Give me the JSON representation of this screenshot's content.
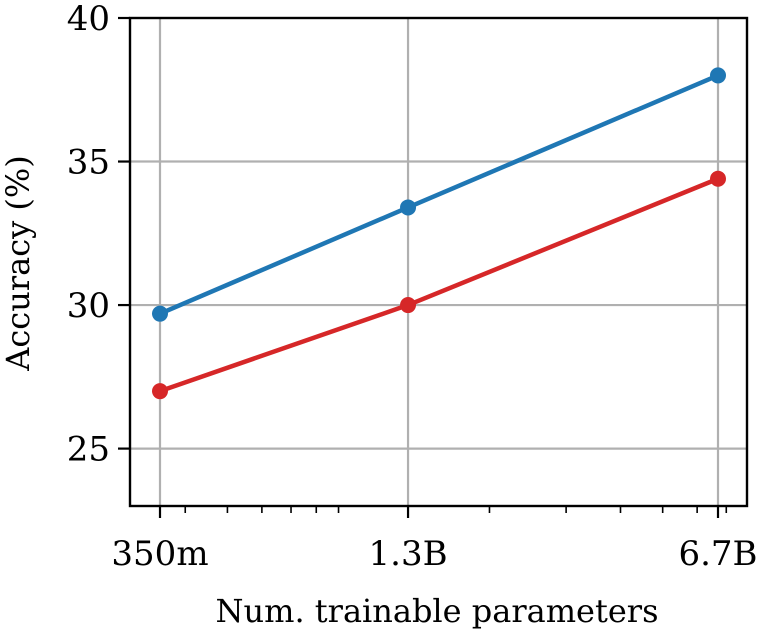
{
  "chart_data": {
    "type": "line",
    "xlabel": "Num. trainable parameters",
    "ylabel": "Accuracy (%)",
    "x_scale": "log",
    "x_values_millions": [
      350,
      1300,
      6700
    ],
    "x_tick_labels": [
      "350m",
      "1.3B",
      "6.7B"
    ],
    "y_ticks": [
      25,
      30,
      35,
      40
    ],
    "ylim": [
      23,
      40
    ],
    "grid": true,
    "series": [
      {
        "color": "#1f77b4",
        "values": [
          29.7,
          33.4,
          38.0
        ]
      },
      {
        "color": "#d62728",
        "values": [
          27.0,
          30.0,
          34.4
        ]
      }
    ]
  }
}
